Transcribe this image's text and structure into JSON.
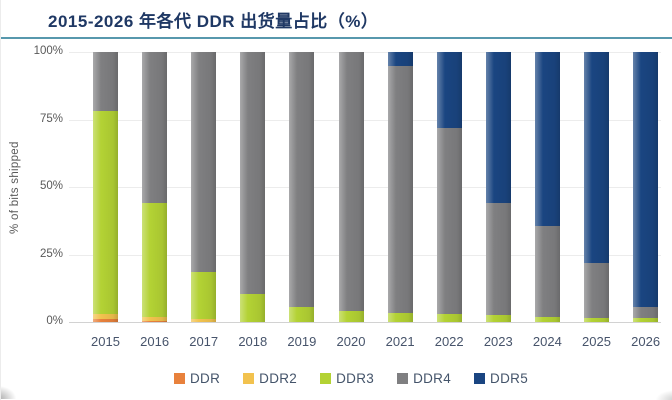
{
  "chart_data": {
    "type": "bar",
    "stacked": true,
    "title": "2015-2026 年各代 DDR 出货量占比（%）",
    "ylabel": "% of bits shipped",
    "xlabel": "",
    "ylim": [
      0,
      100
    ],
    "grid": true,
    "legend_position": "bottom",
    "yticks": [
      "0%",
      "25%",
      "50%",
      "75%",
      "100%"
    ],
    "ytick_values": [
      0,
      25,
      50,
      75,
      100
    ],
    "categories": [
      "2015",
      "2016",
      "2017",
      "2018",
      "2019",
      "2020",
      "2021",
      "2022",
      "2023",
      "2024",
      "2025",
      "2026"
    ],
    "series": [
      {
        "name": "DDR",
        "color": "#e8813c",
        "values": [
          1,
          0.5,
          0,
          0,
          0,
          0,
          0,
          0,
          0,
          0,
          0,
          0
        ]
      },
      {
        "name": "DDR2",
        "color": "#f2c24e",
        "values": [
          2,
          1.5,
          1,
          0,
          0,
          0,
          0,
          0,
          0,
          0,
          0,
          0
        ]
      },
      {
        "name": "DDR3",
        "color": "#b3d234",
        "values": [
          75,
          42,
          17.5,
          10.5,
          5.5,
          4,
          3.5,
          3,
          2.5,
          2,
          1.5,
          1.5
        ]
      },
      {
        "name": "DDR4",
        "color": "#7f7f81",
        "values": [
          22,
          56,
          81.5,
          89.5,
          94.5,
          96,
          91.5,
          69,
          41.5,
          33.5,
          20.5,
          4
        ]
      },
      {
        "name": "DDR5",
        "color": "#1a4581",
        "values": [
          0,
          0,
          0,
          0,
          0,
          0,
          5,
          28,
          56,
          64.5,
          78,
          94.5
        ]
      }
    ]
  },
  "colors": {
    "title_text": "#1f3864",
    "divider_line": "#5798ad",
    "axis_text": "#595959",
    "category_text": "#47546b",
    "gridline": "#ececec"
  }
}
